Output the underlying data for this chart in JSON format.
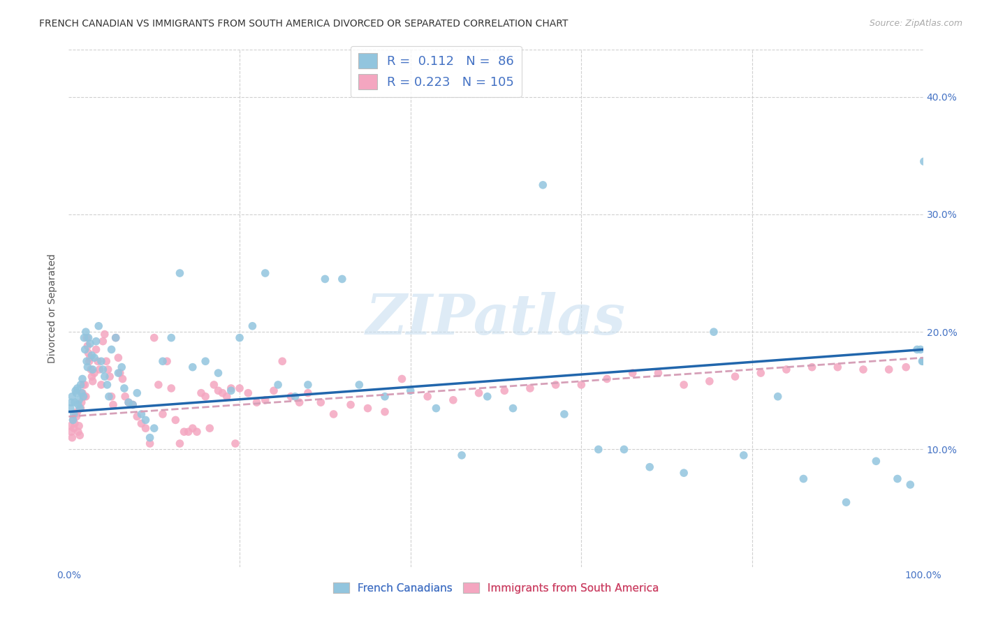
{
  "title": "FRENCH CANADIAN VS IMMIGRANTS FROM SOUTH AMERICA DIVORCED OR SEPARATED CORRELATION CHART",
  "source_text": "Source: ZipAtlas.com",
  "ylabel": "Divorced or Separated",
  "xlim": [
    0.0,
    1.0
  ],
  "ylim": [
    0.0,
    0.44
  ],
  "ytick_positions": [
    0.1,
    0.2,
    0.3,
    0.4
  ],
  "ytick_labels": [
    "10.0%",
    "20.0%",
    "30.0%",
    "40.0%"
  ],
  "xtick_positions": [
    0.0,
    1.0
  ],
  "xtick_labels": [
    "0.0%",
    "100.0%"
  ],
  "blue_color": "#92c5de",
  "pink_color": "#f4a6c0",
  "blue_line_color": "#2166ac",
  "pink_line_color": "#d6a0b8",
  "grid_color": "#d0d0d0",
  "background_color": "#ffffff",
  "title_fontsize": 10,
  "tick_fontsize": 10,
  "ylabel_fontsize": 10,
  "source_fontsize": 9,
  "watermark_text": "ZIPatlas",
  "watermark_color": "#c8dff0",
  "blue_R": "0.112",
  "blue_N": "86",
  "pink_R": "0.223",
  "pink_N": "105",
  "legend_label_blue": "French Canadians",
  "legend_label_pink": "Immigrants from South America",
  "blue_trend_x0": 0.0,
  "blue_trend_y0": 0.132,
  "blue_trend_x1": 1.0,
  "blue_trend_y1": 0.185,
  "pink_trend_x0": 0.0,
  "pink_trend_y0": 0.128,
  "pink_trend_x1": 1.0,
  "pink_trend_y1": 0.178,
  "blue_x": [
    0.002,
    0.003,
    0.004,
    0.005,
    0.006,
    0.007,
    0.008,
    0.009,
    0.01,
    0.011,
    0.012,
    0.013,
    0.014,
    0.015,
    0.016,
    0.017,
    0.018,
    0.019,
    0.02,
    0.021,
    0.022,
    0.023,
    0.025,
    0.027,
    0.028,
    0.03,
    0.032,
    0.035,
    0.038,
    0.04,
    0.042,
    0.045,
    0.047,
    0.05,
    0.055,
    0.058,
    0.062,
    0.065,
    0.07,
    0.075,
    0.08,
    0.085,
    0.09,
    0.095,
    0.1,
    0.11,
    0.12,
    0.13,
    0.145,
    0.16,
    0.175,
    0.19,
    0.2,
    0.215,
    0.23,
    0.245,
    0.265,
    0.28,
    0.3,
    0.32,
    0.34,
    0.37,
    0.4,
    0.43,
    0.46,
    0.49,
    0.52,
    0.555,
    0.58,
    0.62,
    0.65,
    0.68,
    0.72,
    0.755,
    0.79,
    0.83,
    0.86,
    0.91,
    0.945,
    0.97,
    0.985,
    0.993,
    0.997,
    0.999,
    1.0,
    1.001
  ],
  "blue_y": [
    0.135,
    0.14,
    0.145,
    0.125,
    0.13,
    0.14,
    0.15,
    0.148,
    0.152,
    0.138,
    0.142,
    0.135,
    0.155,
    0.148,
    0.16,
    0.145,
    0.195,
    0.185,
    0.2,
    0.175,
    0.17,
    0.195,
    0.19,
    0.18,
    0.168,
    0.178,
    0.192,
    0.205,
    0.175,
    0.168,
    0.162,
    0.155,
    0.145,
    0.185,
    0.195,
    0.165,
    0.17,
    0.152,
    0.14,
    0.138,
    0.148,
    0.13,
    0.125,
    0.11,
    0.118,
    0.175,
    0.195,
    0.25,
    0.17,
    0.175,
    0.165,
    0.15,
    0.195,
    0.205,
    0.25,
    0.155,
    0.145,
    0.155,
    0.245,
    0.245,
    0.155,
    0.145,
    0.15,
    0.135,
    0.095,
    0.145,
    0.135,
    0.325,
    0.13,
    0.1,
    0.1,
    0.085,
    0.08,
    0.2,
    0.095,
    0.145,
    0.075,
    0.055,
    0.09,
    0.075,
    0.07,
    0.185,
    0.185,
    0.175,
    0.175,
    0.345
  ],
  "pink_x": [
    0.002,
    0.003,
    0.004,
    0.005,
    0.006,
    0.007,
    0.008,
    0.009,
    0.01,
    0.011,
    0.012,
    0.013,
    0.014,
    0.015,
    0.016,
    0.017,
    0.018,
    0.019,
    0.02,
    0.021,
    0.022,
    0.023,
    0.024,
    0.025,
    0.026,
    0.027,
    0.028,
    0.03,
    0.032,
    0.034,
    0.036,
    0.038,
    0.04,
    0.042,
    0.044,
    0.046,
    0.048,
    0.05,
    0.052,
    0.055,
    0.058,
    0.06,
    0.063,
    0.066,
    0.07,
    0.075,
    0.08,
    0.085,
    0.09,
    0.095,
    0.1,
    0.105,
    0.11,
    0.115,
    0.12,
    0.125,
    0.13,
    0.135,
    0.14,
    0.145,
    0.15,
    0.155,
    0.16,
    0.165,
    0.17,
    0.175,
    0.18,
    0.185,
    0.19,
    0.195,
    0.2,
    0.21,
    0.22,
    0.23,
    0.24,
    0.25,
    0.26,
    0.27,
    0.28,
    0.295,
    0.31,
    0.33,
    0.35,
    0.37,
    0.39,
    0.42,
    0.45,
    0.48,
    0.51,
    0.54,
    0.57,
    0.6,
    0.63,
    0.66,
    0.69,
    0.72,
    0.75,
    0.78,
    0.81,
    0.84,
    0.87,
    0.9,
    0.93,
    0.96,
    0.98
  ],
  "pink_y": [
    0.12,
    0.115,
    0.11,
    0.125,
    0.118,
    0.122,
    0.13,
    0.128,
    0.132,
    0.115,
    0.12,
    0.112,
    0.135,
    0.14,
    0.148,
    0.155,
    0.145,
    0.155,
    0.145,
    0.195,
    0.188,
    0.182,
    0.175,
    0.178,
    0.168,
    0.162,
    0.158,
    0.165,
    0.185,
    0.175,
    0.168,
    0.155,
    0.192,
    0.198,
    0.175,
    0.168,
    0.162,
    0.145,
    0.138,
    0.195,
    0.178,
    0.165,
    0.16,
    0.145,
    0.14,
    0.138,
    0.128,
    0.122,
    0.118,
    0.105,
    0.195,
    0.155,
    0.13,
    0.175,
    0.152,
    0.125,
    0.105,
    0.115,
    0.115,
    0.118,
    0.115,
    0.148,
    0.145,
    0.118,
    0.155,
    0.15,
    0.148,
    0.145,
    0.152,
    0.105,
    0.152,
    0.148,
    0.14,
    0.142,
    0.15,
    0.175,
    0.145,
    0.14,
    0.148,
    0.14,
    0.13,
    0.138,
    0.135,
    0.132,
    0.16,
    0.145,
    0.142,
    0.148,
    0.15,
    0.152,
    0.155,
    0.155,
    0.16,
    0.165,
    0.165,
    0.155,
    0.158,
    0.162,
    0.165,
    0.168,
    0.17,
    0.17,
    0.168,
    0.168,
    0.17
  ]
}
